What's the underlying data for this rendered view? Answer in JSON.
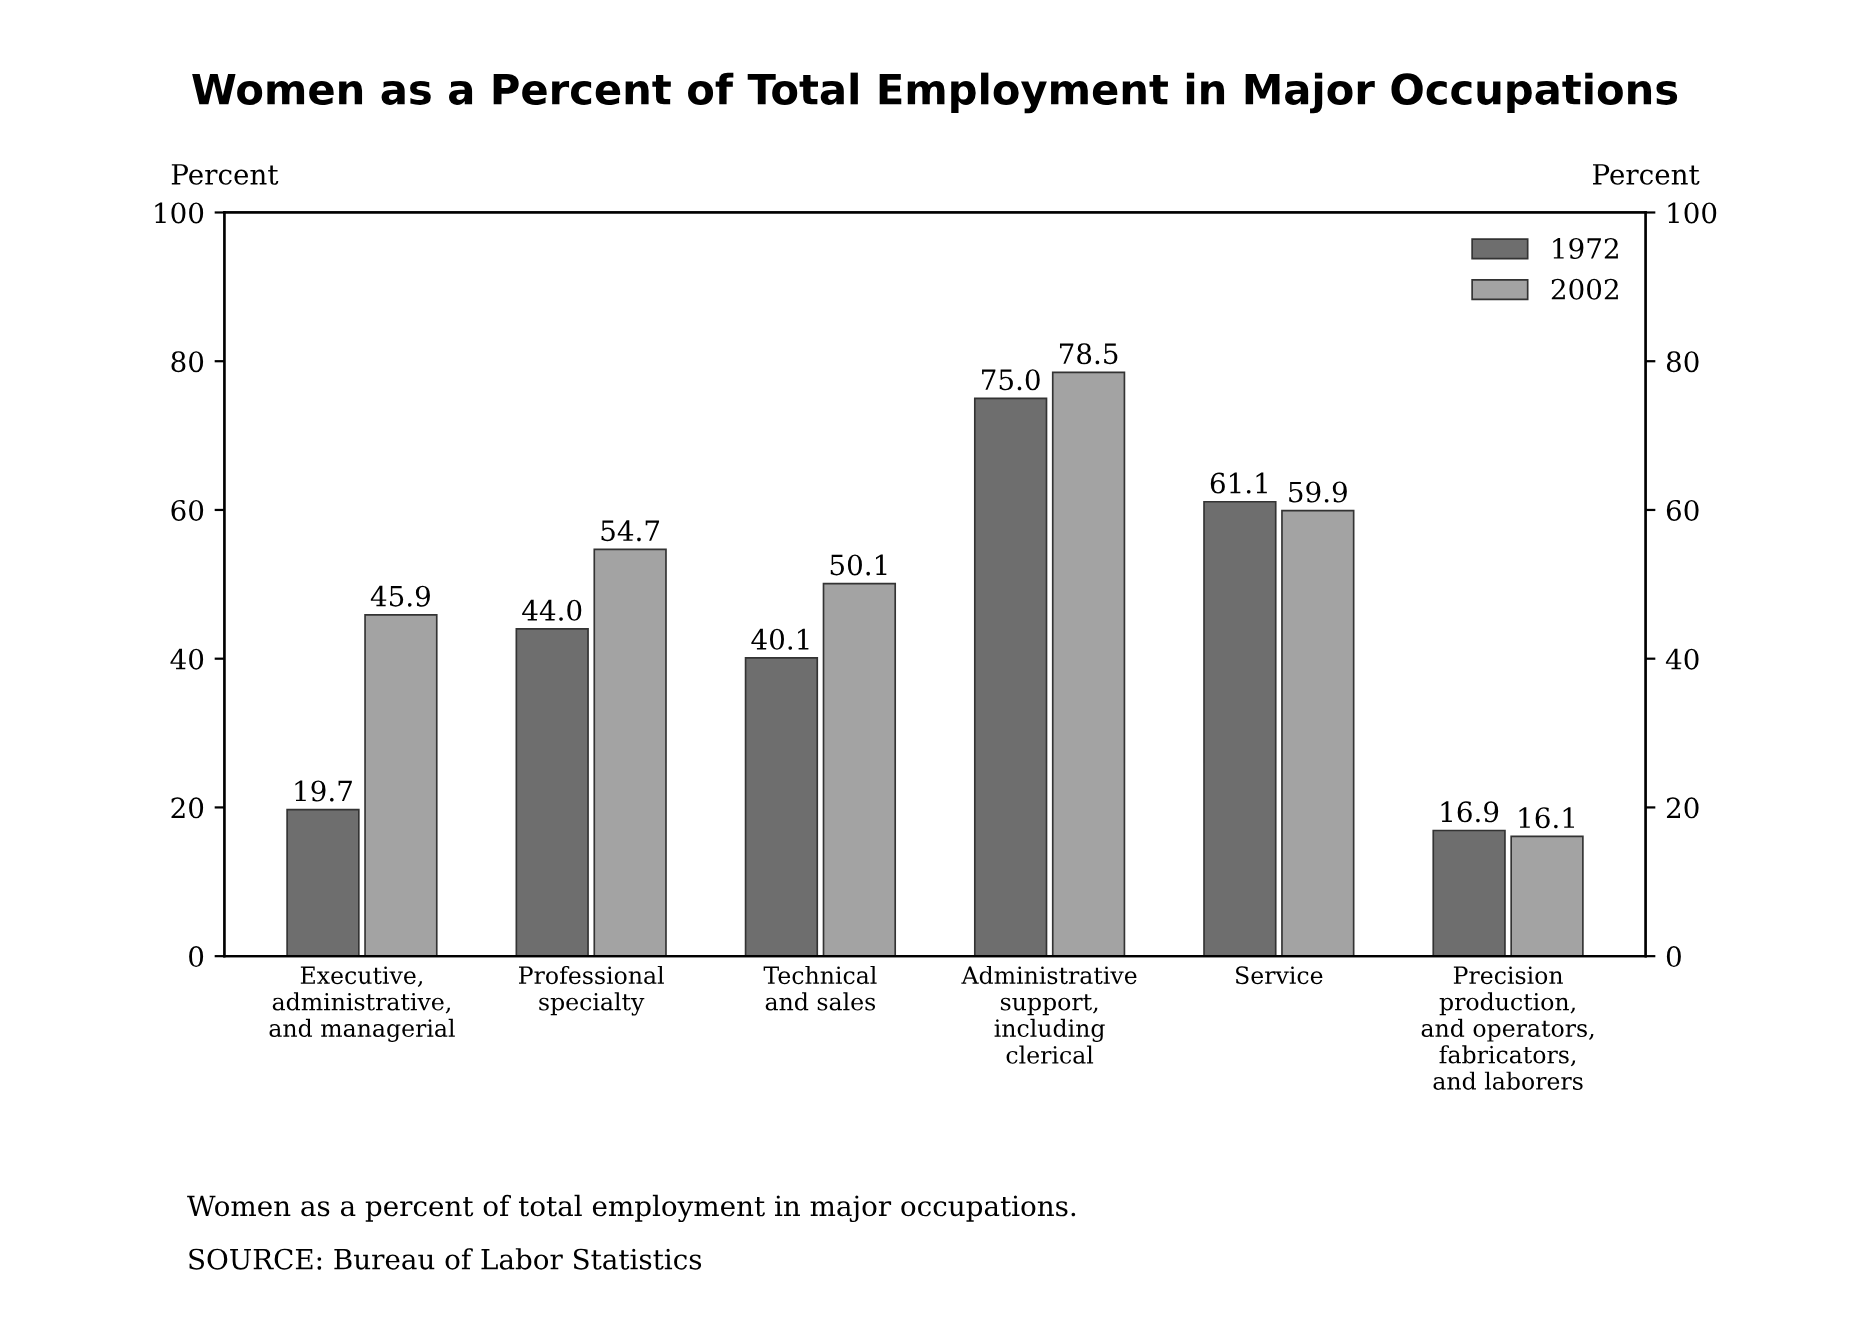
{
  "chart_data": {
    "type": "bar",
    "title": "Women as a Percent of Total Employment in Major Occupations",
    "categories": [
      "Executive,\nadministrative,\nand managerial",
      "Professional\nspecialty",
      "Technical\nand sales",
      "Administrative\nsupport,\nincluding\nclerical",
      "Service",
      "Precision\nproduction,\nand operators,\nfabricators,\nand laborers"
    ],
    "series": [
      {
        "name": "1972",
        "color": "#6e6e6e",
        "values": [
          19.7,
          44.0,
          40.1,
          75.0,
          61.1,
          16.9
        ],
        "value_labels": [
          "19.7",
          "44.0",
          "40.1",
          "75.0",
          "61.1",
          "16.9"
        ]
      },
      {
        "name": "2002",
        "color": "#a3a3a3",
        "values": [
          45.9,
          54.7,
          50.1,
          78.5,
          59.9,
          16.1
        ],
        "value_labels": [
          "45.9",
          "54.7",
          "50.1",
          "78.5",
          "59.9",
          "16.1"
        ]
      }
    ],
    "ylabel": "Percent",
    "y2label": "Percent",
    "ylim": [
      0,
      100
    ],
    "yticks": [
      0,
      20,
      40,
      60,
      80,
      100
    ],
    "y2lim": [
      0,
      100
    ],
    "y2ticks": [
      0,
      20,
      40,
      60,
      80,
      100
    ],
    "legend": "top right",
    "grid": false,
    "annotations": [
      "Women as a percent of total employment in major occupations.",
      "SOURCE: Bureau of Labor Statistics"
    ]
  }
}
